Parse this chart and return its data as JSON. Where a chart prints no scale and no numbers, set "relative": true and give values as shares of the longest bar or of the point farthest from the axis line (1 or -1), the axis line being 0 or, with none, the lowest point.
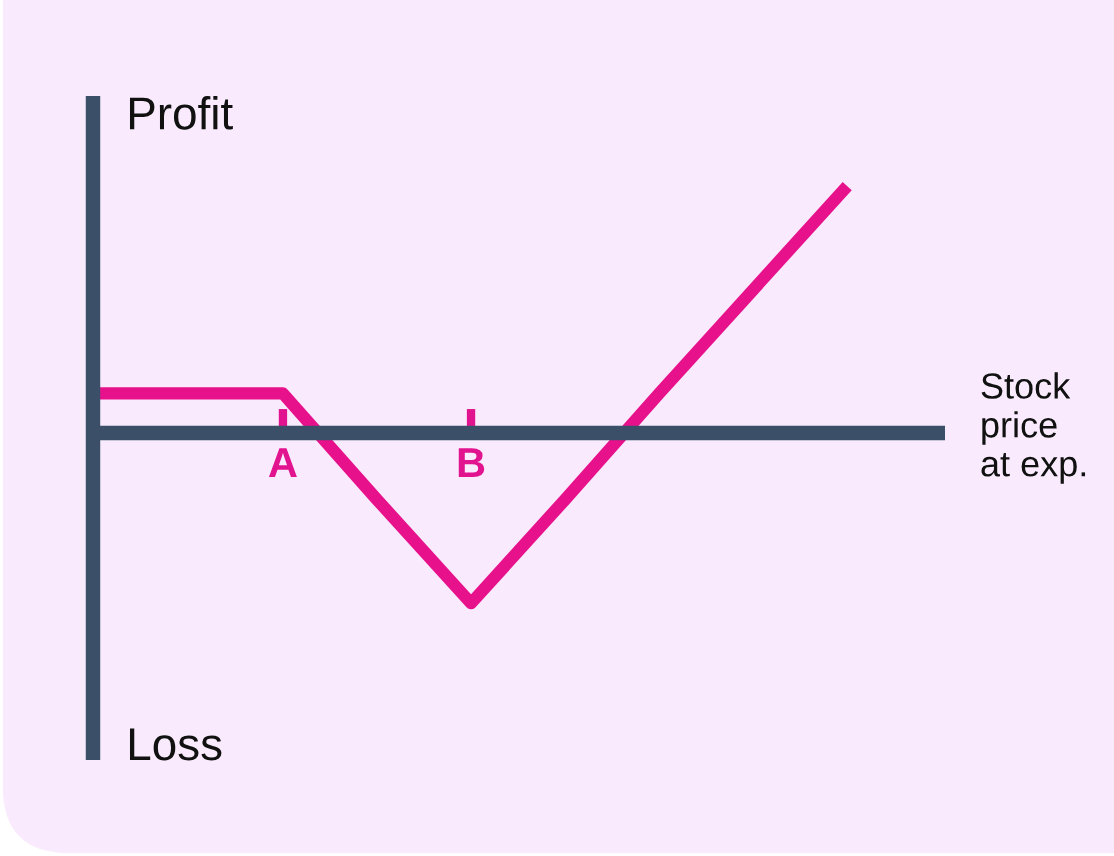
{
  "chart_data": {
    "type": "line",
    "relative": true,
    "categories": [
      null,
      null,
      "A",
      null,
      "B",
      null,
      null,
      null,
      null
    ],
    "series": [
      {
        "color": "#e8118c",
        "values": [
          0.16,
          0.16,
          0.16,
          -0.27,
          -0.69,
          -0.27,
          0.16,
          0.58,
          1
        ]
      }
    ],
    "xlabel": "Stock\nprice\nat exp.",
    "annotations": [
      "Profit",
      "Loss"
    ],
    "tick_labels": "x",
    "marker": "none",
    "line_style": "solid"
  }
}
